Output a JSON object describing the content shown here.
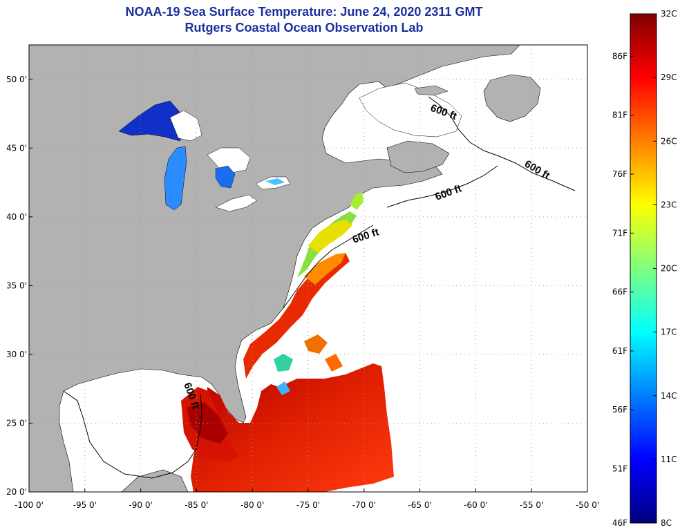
{
  "header": {
    "title_line1": "NOAA-19 Sea Surface Temperature:  June 24, 2020 2311 GMT",
    "title_line2": "Rutgers Coastal Ocean Observation Lab"
  },
  "map": {
    "lon_range": [
      -100,
      -50
    ],
    "lat_range": [
      20,
      52.5
    ],
    "lon_ticks": [
      "-100 0'",
      "-95 0'",
      "-90 0'",
      "-85 0'",
      "-80 0'",
      "-75 0'",
      "-70 0'",
      "-65 0'",
      "-60 0'",
      "-55 0'",
      "-50 0'"
    ],
    "lat_ticks": [
      "20 0'",
      "25 0'",
      "30 0'",
      "35 0'",
      "40 0'",
      "45 0'",
      "50 0'"
    ],
    "contour_label": "600 ft",
    "colors": {
      "land": "#b2b2b2",
      "no_data": "#ffffff",
      "grid": "#9a9a9a"
    }
  },
  "colorbar": {
    "fahrenheit_labels": [
      "86F",
      "81F",
      "76F",
      "71F",
      "66F",
      "61F",
      "56F",
      "51F",
      "46F"
    ],
    "celsius_labels": [
      "32C",
      "29C",
      "26C",
      "23C",
      "20C",
      "17C",
      "14C",
      "11C",
      "8C"
    ],
    "gradient": [
      "#00007f",
      "#0000ff",
      "#007fff",
      "#00ffff",
      "#7fff7f",
      "#ffff00",
      "#ff7f00",
      "#ff0000",
      "#7f0000"
    ]
  }
}
